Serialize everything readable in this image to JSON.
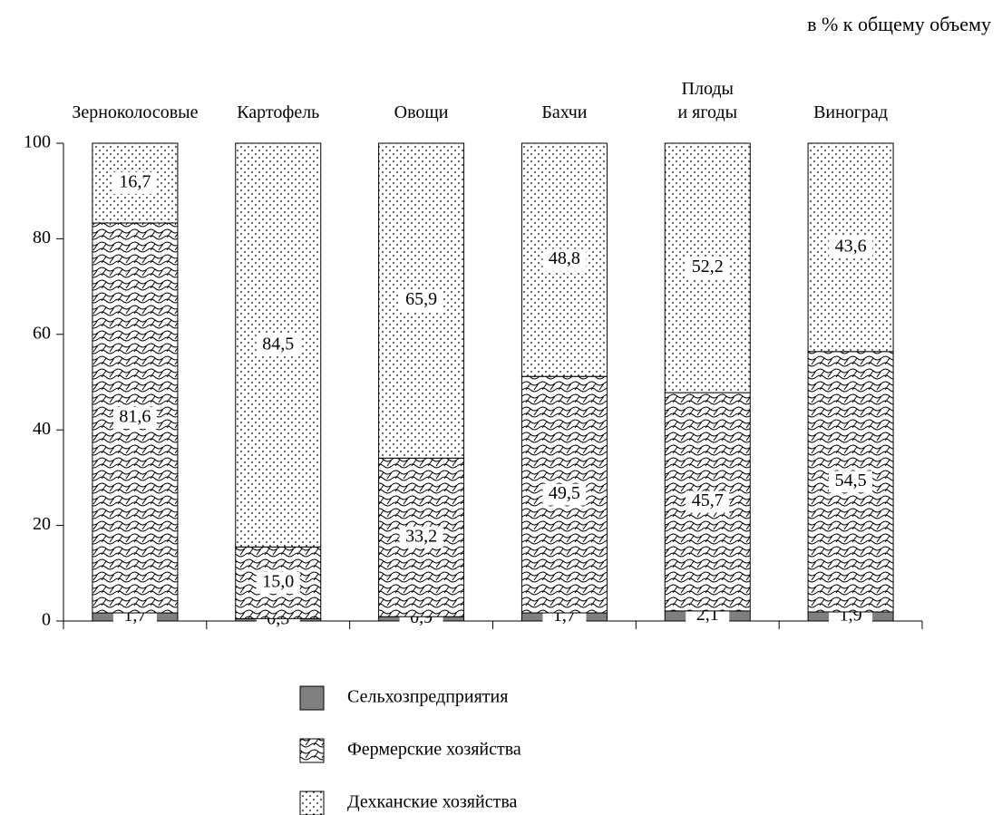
{
  "chart_data": {
    "type": "stacked_bar",
    "subtitle": "в % к общему объему",
    "categories": [
      "Зерноколосовые",
      "Картофель",
      "Овощи",
      "Бахчи",
      "Плоды\nи ягоды",
      "Виноград"
    ],
    "series": [
      {
        "name": "Сельхозпредприятия",
        "color": "#808080",
        "pattern": "solid",
        "values": [
          1.7,
          0.5,
          0.9,
          1.7,
          2.1,
          1.9
        ],
        "value_labels": [
          "1,7",
          "0,5",
          "0,9",
          "1,7",
          "2,1",
          "1,9"
        ]
      },
      {
        "name": "Фермерские хозяйства",
        "color": "#000000",
        "pattern": "waves",
        "values": [
          81.6,
          15.0,
          33.2,
          49.5,
          45.7,
          54.5
        ],
        "value_labels": [
          "81,6",
          "15,0",
          "33,2",
          "49,5",
          "45,7",
          "54,5"
        ]
      },
      {
        "name": "Дехканские хозяйства",
        "color": "#000000",
        "pattern": "dots",
        "values": [
          16.7,
          84.5,
          65.9,
          48.8,
          52.2,
          43.6
        ],
        "value_labels": [
          "16,7",
          "84,5",
          "65,9",
          "48,8",
          "52,2",
          "43,6"
        ]
      }
    ],
    "ylim": [
      0,
      100
    ],
    "yticks": [
      0,
      20,
      40,
      60,
      80,
      100
    ],
    "grid": false,
    "legend": "bottom"
  }
}
